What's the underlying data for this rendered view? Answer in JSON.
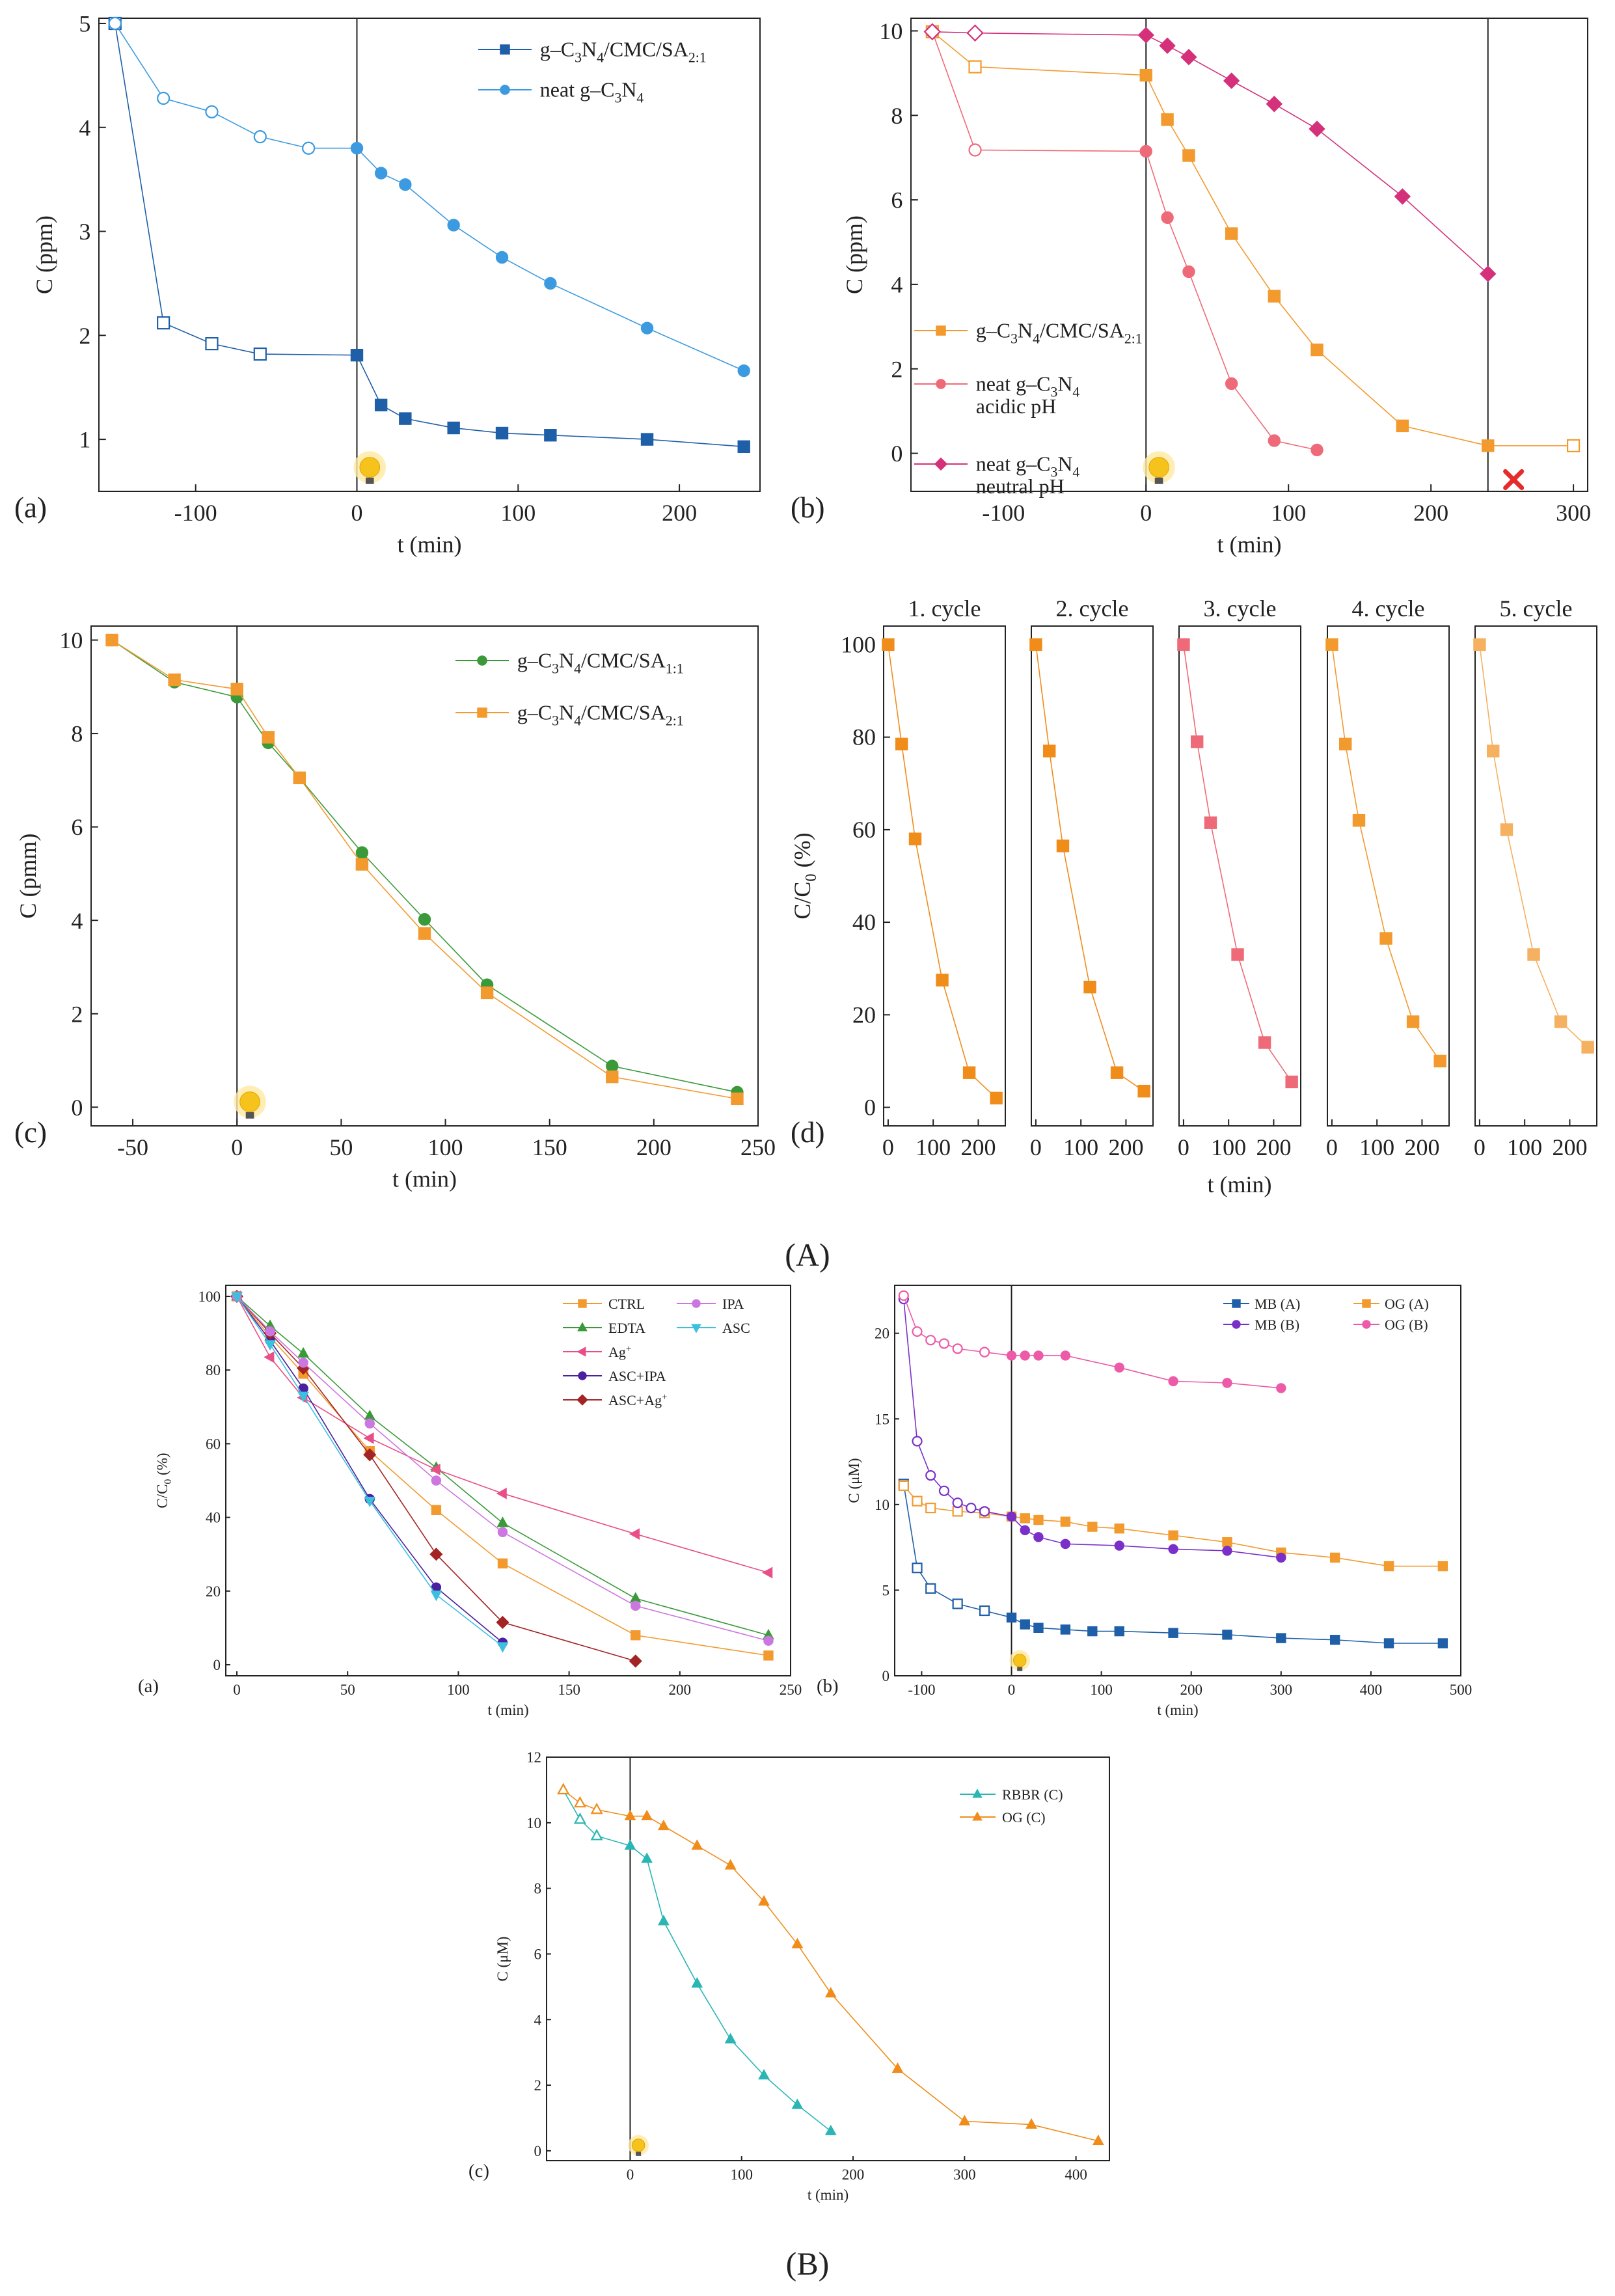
{
  "figure": {
    "label_A": "(A)",
    "label_B": "(B)"
  },
  "colors": {
    "dark_blue": "#1f5fa8",
    "light_blue": "#3c9be0",
    "orange": "#f29a2e",
    "pink": "#ef6a78",
    "magenta": "#d4317a",
    "green": "#3a9a3a",
    "violet": "#cc77e0",
    "cyan": "#3cc0de",
    "purple": "#7a2fc8",
    "dark_red": "#a32424",
    "hot_pink": "#ec5aa8",
    "teal": "#2bb5b5",
    "bright_orange": "#f08c1a",
    "ag_pink": "#e84f88",
    "deep_purple": "#4a1fa0"
  },
  "chart_data": [
    {
      "id": "A-a",
      "type": "line",
      "panel_label": "(a)",
      "xlabel": "t (min)",
      "ylabel": "C (ppm)",
      "xlim": [
        -160,
        250
      ],
      "ylim": [
        0.5,
        5.05
      ],
      "xticks": [
        -100,
        0,
        100,
        200
      ],
      "yticks": [
        1,
        2,
        3,
        4,
        5
      ],
      "vline": 0,
      "lamp": true,
      "series": [
        {
          "name": "g–C3N4/CMC/SA2:1",
          "legend": [
            "g–C",
            "3",
            "N",
            "4",
            "/CMC/SA",
            "2:1"
          ],
          "color": "#1f5fa8",
          "marker": "square",
          "open_until": -1,
          "x": [
            -150,
            -120,
            -90,
            -60,
            0,
            15,
            30,
            60,
            90,
            120,
            180,
            240
          ],
          "y": [
            5.0,
            2.12,
            1.92,
            1.82,
            1.81,
            1.33,
            1.2,
            1.11,
            1.06,
            1.04,
            1.0,
            0.93
          ]
        },
        {
          "name": "neat g–C3N4",
          "legend": [
            "neat g–C",
            "3",
            "N",
            "4"
          ],
          "color": "#3c9be0",
          "marker": "circle",
          "open_until": -1,
          "x": [
            -150,
            -120,
            -90,
            -60,
            -30,
            0,
            15,
            30,
            60,
            90,
            120,
            180,
            240
          ],
          "y": [
            5.0,
            4.28,
            4.15,
            3.91,
            3.8,
            3.8,
            3.56,
            3.45,
            3.06,
            2.75,
            2.5,
            2.07,
            1.66
          ]
        }
      ]
    },
    {
      "id": "A-b",
      "type": "line",
      "panel_label": "(b)",
      "xlabel": "t (min)",
      "ylabel": "C (ppm)",
      "xlim": [
        -165,
        310
      ],
      "ylim": [
        -0.9,
        10.3
      ],
      "xticks": [
        -100,
        0,
        100,
        200,
        300
      ],
      "yticks": [
        0,
        2,
        4,
        6,
        8,
        10
      ],
      "vline": 0,
      "vline2": 240,
      "lamp": true,
      "stop_marker_x": 258,
      "series": [
        {
          "name": "g–C3N4/CMC/SA2:1",
          "legend": [
            "g–C",
            "3",
            "N",
            "4",
            "/CMC/SA",
            "2:1"
          ],
          "color": "#f29a2e",
          "marker": "square",
          "open_until": -1,
          "open_after": 260,
          "x": [
            -150,
            -120,
            0,
            15,
            30,
            60,
            90,
            120,
            180,
            240,
            300
          ],
          "y": [
            9.98,
            9.15,
            8.95,
            7.9,
            7.05,
            5.2,
            3.72,
            2.45,
            0.65,
            0.18,
            0.18
          ]
        },
        {
          "name": "neat g–C3N4 acidic pH",
          "legend": [
            "neat g–C",
            "3",
            "N",
            "4"
          ],
          "legend2": "acidic pH",
          "color": "#ef6a78",
          "marker": "circle",
          "open_until": -1,
          "x": [
            -150,
            -120,
            0,
            15,
            30,
            60,
            90,
            120
          ],
          "y": [
            9.98,
            7.18,
            7.15,
            5.58,
            4.3,
            1.65,
            0.3,
            0.08
          ]
        },
        {
          "name": "neat g–C3N4 neutral pH",
          "legend": [
            "neat g–C",
            "3",
            "N",
            "4"
          ],
          "legend2": "neutral pH",
          "color": "#d4317a",
          "marker": "diamond",
          "open_until": -1,
          "x": [
            -150,
            -120,
            0,
            15,
            30,
            60,
            90,
            120,
            180,
            240
          ],
          "y": [
            9.98,
            9.95,
            9.9,
            9.65,
            9.38,
            8.82,
            8.27,
            7.68,
            6.08,
            4.25
          ]
        }
      ]
    },
    {
      "id": "A-c",
      "type": "line",
      "panel_label": "(c)",
      "xlabel": "t (min)",
      "ylabel": "C (pmm)",
      "xlim": [
        -70,
        250
      ],
      "ylim": [
        -0.4,
        10.3
      ],
      "xticks": [
        -50,
        0,
        50,
        100,
        150,
        200,
        250
      ],
      "yticks": [
        0,
        2,
        4,
        6,
        8,
        10
      ],
      "vline": 0,
      "lamp": true,
      "series": [
        {
          "name": "g–C3N4/CMC/SA1:1",
          "legend": [
            "g–C",
            "3",
            "N",
            "4",
            "/CMC/SA",
            "1:1"
          ],
          "color": "#3a9a3a",
          "marker": "circle",
          "open_until": -999,
          "x": [
            -60,
            -30,
            0,
            15,
            30,
            60,
            90,
            120,
            180,
            240
          ],
          "y": [
            10.0,
            9.1,
            8.78,
            7.8,
            7.05,
            5.45,
            4.02,
            2.62,
            0.88,
            0.32
          ]
        },
        {
          "name": "g–C3N4/CMC/SA2:1",
          "legend": [
            "g–C",
            "3",
            "N",
            "4",
            "/CMC/SA",
            "2:1"
          ],
          "color": "#f29a2e",
          "marker": "square",
          "open_until": -999,
          "x": [
            -60,
            -30,
            0,
            15,
            30,
            60,
            90,
            120,
            180,
            240
          ],
          "y": [
            10.0,
            9.15,
            8.95,
            7.92,
            7.05,
            5.2,
            3.72,
            2.45,
            0.65,
            0.18
          ]
        }
      ]
    },
    {
      "id": "A-d",
      "type": "line",
      "panel_label": "(d)",
      "xlabel": "t (min)",
      "ylabel": "C/C0 (%)",
      "ylim": [
        -4,
        104
      ],
      "yticks": [
        0,
        20,
        40,
        60,
        80,
        100
      ],
      "sub_xlim": [
        -10,
        260
      ],
      "sub_xticks": [
        0,
        100,
        200
      ],
      "cycles": [
        {
          "title": "1. cycle",
          "color": "#f08c1a",
          "x": [
            0,
            30,
            60,
            120,
            180,
            240
          ],
          "y": [
            100,
            78.5,
            58,
            27.5,
            7.5,
            2
          ]
        },
        {
          "title": "2. cycle",
          "color": "#f08c1a",
          "x": [
            0,
            30,
            60,
            120,
            180,
            240
          ],
          "y": [
            100,
            77,
            56.5,
            26,
            7.5,
            3.5
          ]
        },
        {
          "title": "3. cycle",
          "color": "#ef6a78",
          "x": [
            0,
            30,
            60,
            120,
            180,
            240
          ],
          "y": [
            100,
            79,
            61.5,
            33,
            14,
            5.5
          ]
        },
        {
          "title": "4. cycle",
          "color": "#f29a2e",
          "x": [
            0,
            30,
            60,
            120,
            180,
            240
          ],
          "y": [
            100,
            78.5,
            62,
            36.5,
            18.5,
            10
          ]
        },
        {
          "title": "5. cycle",
          "color": "#f5b060",
          "x": [
            0,
            30,
            60,
            120,
            180,
            240
          ],
          "y": [
            100,
            77,
            60,
            33,
            18.5,
            13
          ]
        }
      ]
    },
    {
      "id": "B-a",
      "type": "line",
      "panel_label": "(a)",
      "xlabel": "t (min)",
      "ylabel": "C/C0 (%)",
      "xlim": [
        -5,
        250
      ],
      "ylim": [
        -3,
        103
      ],
      "xticks": [
        0,
        50,
        100,
        150,
        200,
        250
      ],
      "yticks": [
        0,
        20,
        40,
        60,
        80,
        100
      ],
      "series": [
        {
          "name": "CTRL",
          "color": "#f29a2e",
          "marker": "square",
          "x": [
            0,
            15,
            30,
            60,
            90,
            120,
            180,
            240
          ],
          "y": [
            100,
            89,
            79,
            58,
            42,
            27.5,
            8,
            2.5
          ]
        },
        {
          "name": "EDTA",
          "color": "#3a9a3a",
          "marker": "triangle",
          "x": [
            0,
            15,
            30,
            60,
            90,
            120,
            180,
            240
          ],
          "y": [
            100,
            92,
            84.5,
            67.5,
            53.5,
            38.5,
            18,
            8
          ]
        },
        {
          "name": "Ag+",
          "color": "#e84f88",
          "marker": "triangle-left",
          "x": [
            0,
            15,
            30,
            60,
            90,
            120,
            180,
            240
          ],
          "y": [
            100,
            83.5,
            72.5,
            61.5,
            53,
            46.5,
            35.5,
            25
          ]
        },
        {
          "name": "ASC+IPA",
          "color": "#4a1fa0",
          "marker": "circle",
          "x": [
            0,
            15,
            30,
            60,
            90,
            120
          ],
          "y": [
            100,
            88,
            75,
            45,
            21,
            6
          ]
        },
        {
          "name": "ASC+Ag+",
          "color": "#a32424",
          "marker": "diamond",
          "x": [
            0,
            15,
            30,
            60,
            90,
            120,
            180
          ],
          "y": [
            100,
            90,
            80.5,
            57,
            30,
            11.5,
            1
          ]
        },
        {
          "name": "IPA",
          "color": "#cc77e0",
          "marker": "circle",
          "x": [
            0,
            15,
            30,
            60,
            90,
            120,
            180,
            240
          ],
          "y": [
            100,
            90.5,
            82,
            65.5,
            50,
            36,
            16,
            6.5
          ]
        },
        {
          "name": "ASC",
          "color": "#3cc0de",
          "marker": "triangle-down",
          "x": [
            0,
            15,
            30,
            60,
            90,
            120
          ],
          "y": [
            100,
            87,
            73,
            44.5,
            19,
            5
          ]
        }
      ]
    },
    {
      "id": "B-b",
      "type": "line",
      "panel_label": "(b)",
      "xlabel": "t (min)",
      "ylabel": "C (μM)",
      "xlim": [
        -130,
        500
      ],
      "ylim": [
        0,
        22.8
      ],
      "xticks": [
        -100,
        0,
        100,
        200,
        300,
        400,
        500
      ],
      "yticks": [
        0,
        5,
        10,
        15,
        20
      ],
      "vline": 0,
      "lamp": true,
      "series": [
        {
          "name": "MB (A)",
          "color": "#1f5fa8",
          "marker": "square",
          "open_until": -1,
          "x": [
            -120,
            -105,
            -90,
            -60,
            -30,
            0,
            15,
            30,
            60,
            90,
            120,
            180,
            240,
            300,
            360,
            420,
            480
          ],
          "y": [
            11.2,
            6.3,
            5.1,
            4.2,
            3.8,
            3.4,
            3.0,
            2.8,
            2.7,
            2.6,
            2.6,
            2.5,
            2.4,
            2.2,
            2.1,
            1.9,
            1.9
          ]
        },
        {
          "name": "OG (A)",
          "color": "#f29a2e",
          "marker": "square",
          "open_until": -1,
          "x": [
            -120,
            -105,
            -90,
            -60,
            -30,
            0,
            15,
            30,
            60,
            90,
            120,
            180,
            240,
            300,
            360,
            420,
            480
          ],
          "y": [
            11.1,
            10.2,
            9.8,
            9.6,
            9.5,
            9.3,
            9.2,
            9.1,
            9.0,
            8.7,
            8.6,
            8.2,
            7.8,
            7.2,
            6.9,
            6.4,
            6.4
          ]
        },
        {
          "name": "MB (B)",
          "color": "#7a2fc8",
          "marker": "circle",
          "open_until": -1,
          "x": [
            -120,
            -105,
            -90,
            -75,
            -60,
            -45,
            -30,
            0,
            15,
            30,
            60,
            120,
            180,
            240,
            300
          ],
          "y": [
            22.0,
            13.7,
            11.7,
            10.8,
            10.1,
            9.8,
            9.6,
            9.3,
            8.5,
            8.1,
            7.7,
            7.6,
            7.4,
            7.3,
            6.9
          ]
        },
        {
          "name": "OG (B)",
          "color": "#ec5aa8",
          "marker": "circle",
          "open_until": -1,
          "x": [
            -120,
            -105,
            -90,
            -75,
            -60,
            -30,
            0,
            15,
            30,
            60,
            120,
            180,
            240,
            300
          ],
          "y": [
            22.2,
            20.1,
            19.6,
            19.4,
            19.1,
            18.9,
            18.7,
            18.7,
            18.7,
            18.7,
            18.0,
            17.2,
            17.1,
            16.8
          ]
        }
      ]
    },
    {
      "id": "B-c",
      "type": "line",
      "panel_label": "(c)",
      "xlabel": "t (min)",
      "ylabel": "C (μM)",
      "xlim": [
        -75,
        430
      ],
      "ylim": [
        -0.3,
        12
      ],
      "xticks": [
        0,
        100,
        200,
        300,
        400
      ],
      "yticks": [
        0,
        2,
        4,
        6,
        8,
        10,
        12
      ],
      "vline": 0,
      "lamp": true,
      "series": [
        {
          "name": "RBBR (C)",
          "color": "#2bb5b5",
          "marker": "triangle",
          "open_until": -1,
          "x": [
            -60,
            -45,
            -30,
            0,
            15,
            30,
            60,
            90,
            120,
            150,
            180
          ],
          "y": [
            11.0,
            10.1,
            9.6,
            9.3,
            8.9,
            7.0,
            5.1,
            3.4,
            2.3,
            1.4,
            0.6
          ]
        },
        {
          "name": "OG (C)",
          "color": "#f08c1a",
          "marker": "triangle",
          "open_until": -1,
          "x": [
            -60,
            -45,
            -30,
            0,
            15,
            30,
            60,
            90,
            120,
            150,
            180,
            240,
            300,
            360,
            420
          ],
          "y": [
            11.0,
            10.6,
            10.4,
            10.2,
            10.2,
            9.9,
            9.3,
            8.7,
            7.6,
            6.3,
            4.8,
            2.5,
            0.9,
            0.8,
            0.3
          ]
        }
      ]
    }
  ]
}
